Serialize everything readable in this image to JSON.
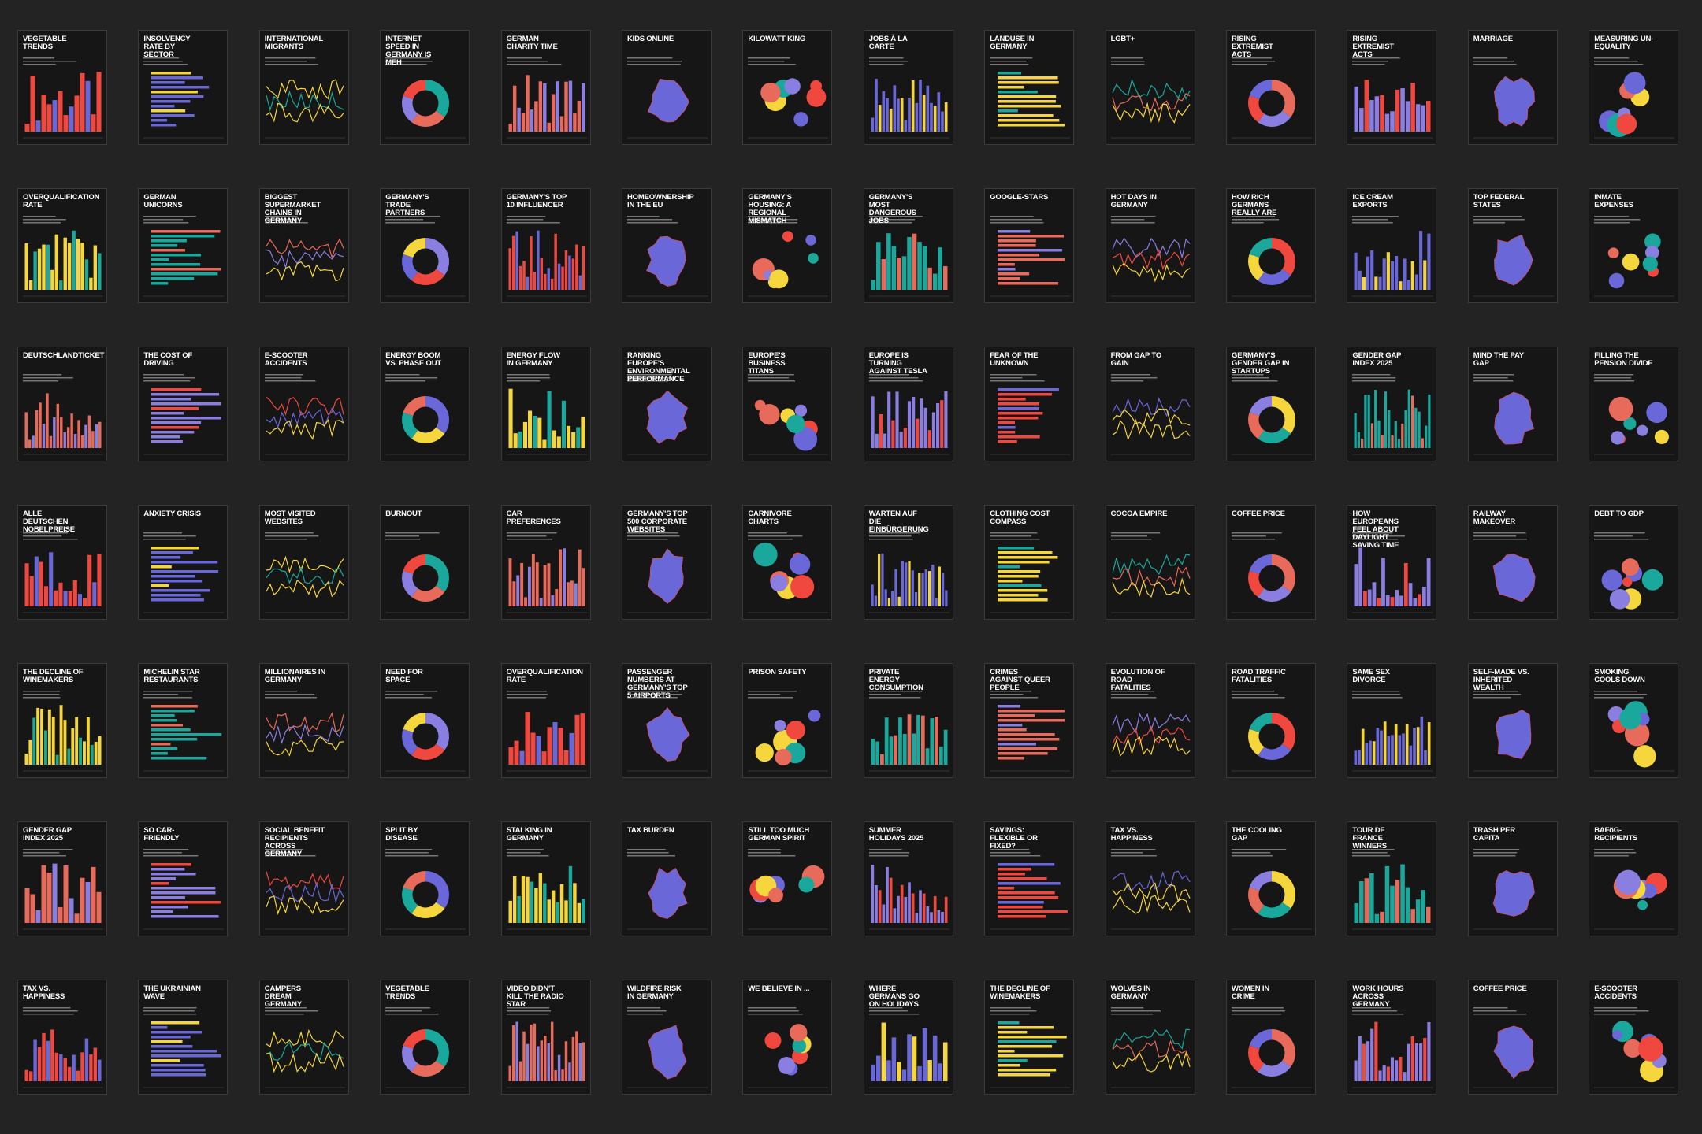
{
  "cards": [
    {
      "title": "VEGETABLE TRENDS"
    },
    {
      "title": "INSOLVENCY RATE BY SECTOR"
    },
    {
      "title": "INTERNATIONAL MIGRANTS"
    },
    {
      "title": "INTERNET SPEED IN GERMANY IS MEH"
    },
    {
      "title": "GERMAN CHARITY TIME"
    },
    {
      "title": "KIDS ONLINE"
    },
    {
      "title": "KILOWATT KING"
    },
    {
      "title": "JOBS À LA CARTE"
    },
    {
      "title": "LANDUSE IN GERMANY"
    },
    {
      "title": "LGBT+"
    },
    {
      "title": "RISING EXTREMIST ACTS"
    },
    {
      "title": "RISING EXTREMIST ACTS"
    },
    {
      "title": "MARRIAGE"
    },
    {
      "title": "MEASURING UN-EQUALITY"
    },
    {
      "title": "OVERQUALIFICATION RATE"
    },
    {
      "title": "GERMAN UNICORNS"
    },
    {
      "title": "BIGGEST SUPERMARKET CHAINS IN GERMANY"
    },
    {
      "title": "GERMANY'S TRADE PARTNERS"
    },
    {
      "title": "GERMANY'S TOP 10 INFLUENCER"
    },
    {
      "title": "HOMEOWNERSHIP IN THE EU"
    },
    {
      "title": "GERMANY'S HOUSING: A REGIONAL MISMATCH"
    },
    {
      "title": "GERMANY'S MOST DANGEROUS JOBS"
    },
    {
      "title": "GOOGLE-STARS"
    },
    {
      "title": "HOT DAYS IN GERMANY"
    },
    {
      "title": "HOW RICH GERMANS REALLY ARE"
    },
    {
      "title": "ICE CREAM EXPORTS"
    },
    {
      "title": "TOP FEDERAL STATES"
    },
    {
      "title": "INMATE EXPENSES"
    },
    {
      "title": "DEUTSCHLANDTICKET"
    },
    {
      "title": "THE COST OF DRIVING"
    },
    {
      "title": "E-SCOOTER ACCIDENTS"
    },
    {
      "title": "ENERGY BOOM VS. PHASE OUT"
    },
    {
      "title": "ENERGY FLOW IN GERMANY"
    },
    {
      "title": "RANKING EUROPE'S ENVIRONMENTAL PERFORMANCE"
    },
    {
      "title": "EUROPE'S BUSINESS TITANS"
    },
    {
      "title": "EUROPE IS TURNING AGAINST TESLA"
    },
    {
      "title": "FEAR OF THE UNKNOWN"
    },
    {
      "title": "FROM GAP TO GAIN"
    },
    {
      "title": "GERMANY'S GENDER GAP IN STARTUPS"
    },
    {
      "title": "GENDER GAP INDEX 2025"
    },
    {
      "title": "MIND THE PAY GAP"
    },
    {
      "title": "FILLING THE PENSION DIVIDE"
    },
    {
      "title": "ALLE DEUTSCHEN NOBELPREISE"
    },
    {
      "title": "ANXIETY CRISIS"
    },
    {
      "title": "MOST VISITED WEBSITES"
    },
    {
      "title": "BURNOUT"
    },
    {
      "title": "CAR PREFERENCES"
    },
    {
      "title": "GERMANY'S TOP 500 CORPORATE WEBSITES"
    },
    {
      "title": "CARNIVORE CHARTS"
    },
    {
      "title": "WARTEN AUF DIE EINBÜRGERUNG"
    },
    {
      "title": "CLOTHING COST COMPASS"
    },
    {
      "title": "COCOA EMPIRE"
    },
    {
      "title": "COFFEE PRICE"
    },
    {
      "title": "HOW EUROPEANS FEEL ABOUT DAYLIGHT SAVING TIME"
    },
    {
      "title": "RAILWAY MAKEOVER"
    },
    {
      "title": "DEBT TO GDP"
    },
    {
      "title": "THE DECLINE OF WINEMAKERS"
    },
    {
      "title": "MICHELIN STAR RESTAURANTS"
    },
    {
      "title": "MILLIONAIRES IN GERMANY"
    },
    {
      "title": "NEED FOR SPACE"
    },
    {
      "title": "OVERQUALIFICATION RATE"
    },
    {
      "title": "PASSENGER NUMBERS AT GERMANY'S TOP 5 AIRPORTS"
    },
    {
      "title": "PRISON SAFETY"
    },
    {
      "title": "PRIVATE ENERGY CONSUMPTION"
    },
    {
      "title": "CRIMES AGAINST QUEER PEOPLE"
    },
    {
      "title": "EVOLUTION OF ROAD FATALITIES"
    },
    {
      "title": "ROAD TRAFFIC FATALITIES"
    },
    {
      "title": "SAME SEX DIVORCE"
    },
    {
      "title": "SELF-MADE VS. INHERITED WEALTH"
    },
    {
      "title": "SMOKING COOLS DOWN"
    },
    {
      "title": "GENDER GAP INDEX 2025"
    },
    {
      "title": "SO CAR-FRIENDLY"
    },
    {
      "title": "SOCIAL BENEFIT RECIPIENTS ACROSS GERMANY"
    },
    {
      "title": "SPLIT BY DISEASE"
    },
    {
      "title": "STALKING IN GERMANY"
    },
    {
      "title": "TAX BURDEN"
    },
    {
      "title": "STILL TOO MUCH GERMAN SPIRIT"
    },
    {
      "title": "SUMMER HOLIDAYS 2025"
    },
    {
      "title": "SAVINGS: FLEXIBLE OR FIXED?"
    },
    {
      "title": "TAX VS. HAPPINESS"
    },
    {
      "title": "THE COOLING GAP"
    },
    {
      "title": "TOUR DE FRANCE WINNERS"
    },
    {
      "title": "TRASH PER CAPITA"
    },
    {
      "title": "BAFöG-RECIPIENTS"
    },
    {
      "title": "TAX VS. HAPPINESS"
    },
    {
      "title": "THE UKRAINIAN WAVE"
    },
    {
      "title": "CAMPERS DREAM GERMANY"
    },
    {
      "title": "VEGETABLE TRENDS"
    },
    {
      "title": "VIDEO DIDN'T KILL THE RADIO STAR"
    },
    {
      "title": "WILDFIRE RISK IN GERMANY"
    },
    {
      "title": "WE BELIEVE IN ..."
    },
    {
      "title": "WHERE GERMANS GO ON HOLIDAYS"
    },
    {
      "title": "THE DECLINE OF WINEMAKERS"
    },
    {
      "title": "WOLVES IN GERMANY"
    },
    {
      "title": "WOMEN IN CRIME"
    },
    {
      "title": "WORK HOURS ACROSS GERMANY"
    },
    {
      "title": "COFFEE PRICE"
    },
    {
      "title": "E-SCOOTER ACCIDENTS"
    }
  ]
}
